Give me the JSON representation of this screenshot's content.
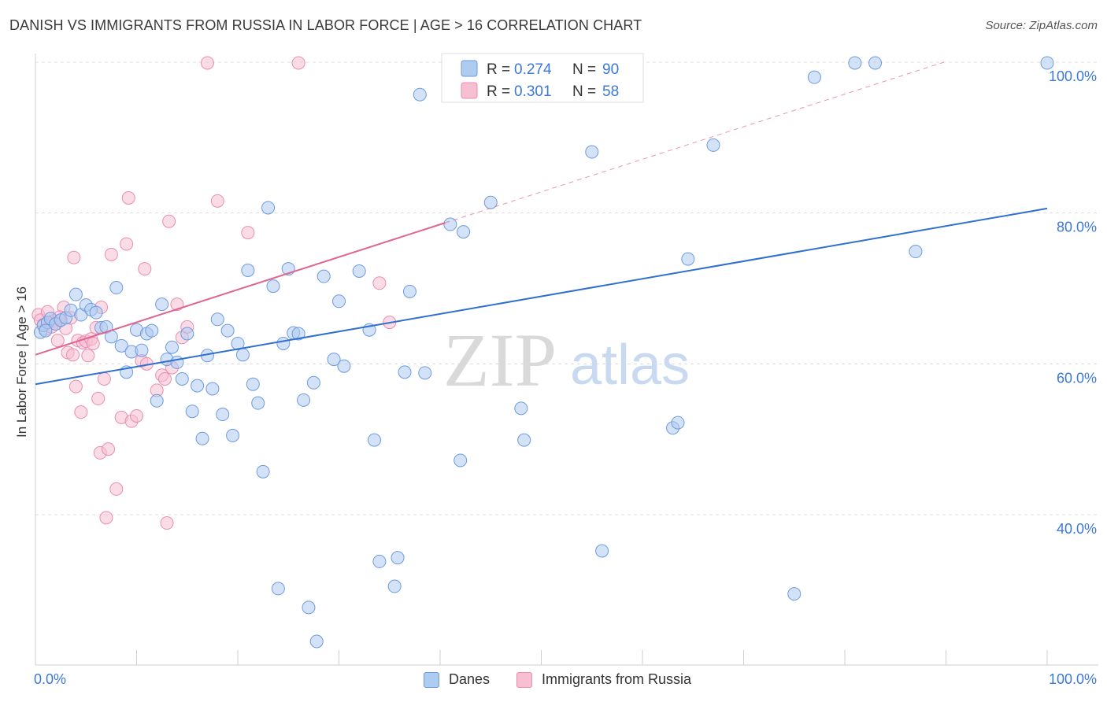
{
  "title": "DANISH VS IMMIGRANTS FROM RUSSIA IN LABOR FORCE | AGE > 16 CORRELATION CHART",
  "source": "Source: ZipAtlas.com",
  "watermark": {
    "zip": "ZIP",
    "atlas": "atlas"
  },
  "colors": {
    "danes_fill": "#aecbf0",
    "danes_stroke": "#6d9be0",
    "danes_line": "#2f6fd0",
    "russia_fill": "#f6c0d2",
    "russia_stroke": "#ea8db0",
    "russia_line": "#e0658f",
    "value_text": "#3b78d8",
    "grid": "#dcdcdc"
  },
  "stats_box": {
    "rows": [
      {
        "r_label": "R =",
        "r_value": "0.274",
        "n_label": "N =",
        "n_value": "90"
      },
      {
        "r_label": "R =",
        "r_value": "0.301",
        "n_label": "N =",
        "n_value": "58"
      }
    ]
  },
  "chart_data": {
    "type": "scatter",
    "title": "DANISH VS IMMIGRANTS FROM RUSSIA IN LABOR FORCE | AGE > 16 CORRELATION CHART",
    "xlabel": "",
    "ylabel": "In Labor Force | Age > 16",
    "xlim": [
      0,
      100
    ],
    "ylim": [
      20,
      102
    ],
    "x_tick_labels": [
      "0.0%",
      "100.0%"
    ],
    "y_ticks": [
      40,
      60,
      80,
      100
    ],
    "y_tick_labels": [
      "40.0%",
      "60.0%",
      "80.0%",
      "100.0%"
    ],
    "grid": true,
    "legend": [
      "Danes",
      "Immigrants from Russia"
    ],
    "series": [
      {
        "name": "Danes",
        "trend": {
          "x": [
            0,
            100
          ],
          "y": [
            57.3,
            80.6
          ]
        },
        "points": [
          [
            0.5,
            64.2
          ],
          [
            0.8,
            65.1
          ],
          [
            1.2,
            65.5
          ],
          [
            1.5,
            66.0
          ],
          [
            2.0,
            65.3
          ],
          [
            2.5,
            65.8
          ],
          [
            3.0,
            66.1
          ],
          [
            3.5,
            67.1
          ],
          [
            4.0,
            69.2
          ],
          [
            4.5,
            66.5
          ],
          [
            5.0,
            67.8
          ],
          [
            5.5,
            67.2
          ],
          [
            6.0,
            66.8
          ],
          [
            6.5,
            64.8
          ],
          [
            7.0,
            64.9
          ],
          [
            7.5,
            63.6
          ],
          [
            8.0,
            70.1
          ],
          [
            8.5,
            62.4
          ],
          [
            9.0,
            58.9
          ],
          [
            9.5,
            61.6
          ],
          [
            10.0,
            64.5
          ],
          [
            10.5,
            61.8
          ],
          [
            11.0,
            64.0
          ],
          [
            11.5,
            64.4
          ],
          [
            12.0,
            55.1
          ],
          [
            12.5,
            67.9
          ],
          [
            13.0,
            60.6
          ],
          [
            13.5,
            62.2
          ],
          [
            14.0,
            60.2
          ],
          [
            14.5,
            58.0
          ],
          [
            15.0,
            64.0
          ],
          [
            15.5,
            53.7
          ],
          [
            16.0,
            57.1
          ],
          [
            16.5,
            50.1
          ],
          [
            17.0,
            61.1
          ],
          [
            17.5,
            56.7
          ],
          [
            18.0,
            65.9
          ],
          [
            18.5,
            53.3
          ],
          [
            19.0,
            64.4
          ],
          [
            19.5,
            50.5
          ],
          [
            20.0,
            62.7
          ],
          [
            20.5,
            61.2
          ],
          [
            21.0,
            72.4
          ],
          [
            21.5,
            57.3
          ],
          [
            22.0,
            54.8
          ],
          [
            22.5,
            45.7
          ],
          [
            23.0,
            80.7
          ],
          [
            23.5,
            70.3
          ],
          [
            24.0,
            30.2
          ],
          [
            24.5,
            62.7
          ],
          [
            25.0,
            72.6
          ],
          [
            25.5,
            64.1
          ],
          [
            26.0,
            64.0
          ],
          [
            26.5,
            55.2
          ],
          [
            27.0,
            27.7
          ],
          [
            27.5,
            57.5
          ],
          [
            27.8,
            23.2
          ],
          [
            28.5,
            71.6
          ],
          [
            29.5,
            60.6
          ],
          [
            30.0,
            68.3
          ],
          [
            30.5,
            59.7
          ],
          [
            32.0,
            72.3
          ],
          [
            33.0,
            64.5
          ],
          [
            33.5,
            49.9
          ],
          [
            34.0,
            33.8
          ],
          [
            35.5,
            30.5
          ],
          [
            35.8,
            34.3
          ],
          [
            36.5,
            58.9
          ],
          [
            37.0,
            69.6
          ],
          [
            38.0,
            95.7
          ],
          [
            38.5,
            58.8
          ],
          [
            41.0,
            78.5
          ],
          [
            42.0,
            47.2
          ],
          [
            42.3,
            77.5
          ],
          [
            45.0,
            81.4
          ],
          [
            48.0,
            54.1
          ],
          [
            48.3,
            49.9
          ],
          [
            55.0,
            88.1
          ],
          [
            56.0,
            35.2
          ],
          [
            63.0,
            51.5
          ],
          [
            63.5,
            52.2
          ],
          [
            64.5,
            73.9
          ],
          [
            67.0,
            89.0
          ],
          [
            75.0,
            29.5
          ],
          [
            77.0,
            98.0
          ],
          [
            81.0,
            99.9
          ],
          [
            83.0,
            99.9
          ],
          [
            87.0,
            74.9
          ],
          [
            100.0,
            99.9
          ],
          [
            1.0,
            64.4
          ]
        ]
      },
      {
        "name": "Immigrants from Russia",
        "trend": {
          "x": [
            0,
            40.5
          ],
          "y": [
            61.2,
            78.7
          ]
        },
        "trend_extension": {
          "x": [
            40.5,
            89.8
          ],
          "y": [
            78.7,
            100
          ]
        },
        "points": [
          [
            0.3,
            66.5
          ],
          [
            0.5,
            65.8
          ],
          [
            0.8,
            65.2
          ],
          [
            1.0,
            64.6
          ],
          [
            1.2,
            66.9
          ],
          [
            1.5,
            65.5
          ],
          [
            1.8,
            65.7
          ],
          [
            2.0,
            65.3
          ],
          [
            2.2,
            63.1
          ],
          [
            2.5,
            65.8
          ],
          [
            2.8,
            67.5
          ],
          [
            3.0,
            64.7
          ],
          [
            3.2,
            61.5
          ],
          [
            3.5,
            66.1
          ],
          [
            3.7,
            61.2
          ],
          [
            3.8,
            74.1
          ],
          [
            4.0,
            57.0
          ],
          [
            4.2,
            63.1
          ],
          [
            4.5,
            53.6
          ],
          [
            4.7,
            62.8
          ],
          [
            5.0,
            63.0
          ],
          [
            5.2,
            61.1
          ],
          [
            5.5,
            63.3
          ],
          [
            5.7,
            62.7
          ],
          [
            6.0,
            64.8
          ],
          [
            6.2,
            55.4
          ],
          [
            6.4,
            48.2
          ],
          [
            6.5,
            67.5
          ],
          [
            6.8,
            58.0
          ],
          [
            7.0,
            39.6
          ],
          [
            7.2,
            48.7
          ],
          [
            7.5,
            74.5
          ],
          [
            8.0,
            43.4
          ],
          [
            8.5,
            52.9
          ],
          [
            9.0,
            75.9
          ],
          [
            9.2,
            82.0
          ],
          [
            9.5,
            52.4
          ],
          [
            10.0,
            53.1
          ],
          [
            10.5,
            60.4
          ],
          [
            10.8,
            72.6
          ],
          [
            11.0,
            60.0
          ],
          [
            12.0,
            56.5
          ],
          [
            12.5,
            58.5
          ],
          [
            13.0,
            38.9
          ],
          [
            13.2,
            78.9
          ],
          [
            13.5,
            59.5
          ],
          [
            14.0,
            67.9
          ],
          [
            14.5,
            63.5
          ],
          [
            15.0,
            64.9
          ],
          [
            17.0,
            99.9
          ],
          [
            18.0,
            81.6
          ],
          [
            21.0,
            77.4
          ],
          [
            26.0,
            99.9
          ],
          [
            34.0,
            70.7
          ],
          [
            35.0,
            65.5
          ],
          [
            1.6,
            64.9
          ],
          [
            2.4,
            66.2
          ],
          [
            12.8,
            58.0
          ]
        ]
      }
    ]
  },
  "legend_bottom": {
    "items": [
      {
        "label": "Danes"
      },
      {
        "label": "Immigrants from Russia"
      }
    ]
  }
}
